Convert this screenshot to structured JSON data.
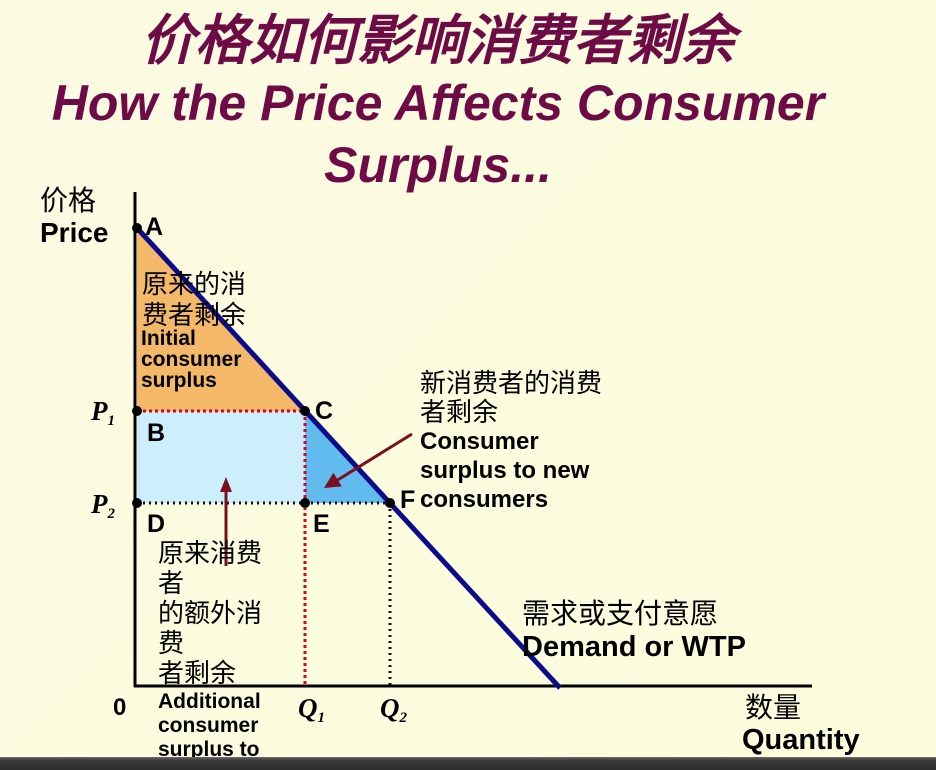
{
  "slide": {
    "title_cn": "价格如何影响消费者剩余",
    "title_en_line1": "How the Price Affects Consumer",
    "title_en_line2": "Surplus...",
    "title_color": "#6e0b46"
  },
  "axes": {
    "y_label_cn": "价格",
    "y_label_en": "Price",
    "x_label_cn": "数量",
    "x_label_en": "Quantity",
    "origin": "0"
  },
  "points": {
    "A": "A",
    "B": "B",
    "C": "C",
    "D": "D",
    "E": "E",
    "F": "F"
  },
  "prices": {
    "p1": {
      "letter": "P",
      "sub": "1"
    },
    "p2": {
      "letter": "P",
      "sub": "2"
    }
  },
  "quantities": {
    "q1": {
      "letter": "Q",
      "sub": "1"
    },
    "q2": {
      "letter": "Q",
      "sub": "2"
    }
  },
  "labels": {
    "initial_cs_cn": [
      "原来的消",
      "费者剩余"
    ],
    "initial_cs_en": [
      "Initial",
      "consumer",
      "surplus"
    ],
    "new_cs_cn": [
      "新消费者的消费",
      "者剩余"
    ],
    "new_cs_en": [
      "Consumer",
      "surplus to new",
      "consumers"
    ],
    "additional_cs_cn": [
      "原来消费",
      "者",
      "的额外消",
      "费",
      "者剩余"
    ],
    "additional_cs_en": [
      "Additional",
      "consumer",
      "surplus to"
    ],
    "demand_cn": "需求或支付意愿",
    "demand_en": "Demand or WTP"
  },
  "colors": {
    "initial_cs_fill": "#f4b968",
    "additional_cs_fill": "#cdeefd",
    "new_cs_fill": "#62bbee",
    "demand_line": "#0c0c8a",
    "q1_guide": "#e2001c",
    "q2_guide": "#111111",
    "arrow": "#7a0f20",
    "point": "#000000"
  }
}
